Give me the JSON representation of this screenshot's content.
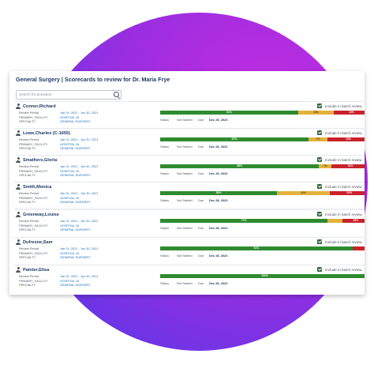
{
  "title": "General Surgery | Scorecards to review for Dr. Maria Frye",
  "search": {
    "placeholder": "Search for providers"
  },
  "labels": {
    "review_period": "Review Period",
    "primary_facility": "PRIMARY_FACILITY",
    "specialty": "SPECIALTY",
    "status": "Status",
    "due": "Due",
    "include": "Include in batch review"
  },
  "colors": {
    "green": "#2e8b2e",
    "yellow": "#e3b23c",
    "red": "#c9222b",
    "accent": "#1f3a63"
  },
  "providers": [
    {
      "name": "Conner,Richard",
      "period": "Jan 01, 2021 - Jun 30, 2021",
      "facility": "HOSPITAL 15",
      "specialty": "GENERAL SURGERY",
      "status": "Not Started",
      "due": "Dec 28, 2023",
      "segments": [
        {
          "color": "green",
          "pct": 66,
          "label": "61%"
        },
        {
          "color": "yellow",
          "pct": 17,
          "label": "13%"
        },
        {
          "color": "red",
          "pct": 17,
          "label": "13%"
        }
      ]
    },
    {
      "name": "Lowe,Charles (C-1655)",
      "period": "Jan 01, 2021 - Jun 30, 2021",
      "facility": "HOSPITAL 15",
      "specialty": "GENERAL SURGERY",
      "status": "Not Started",
      "due": "Dec 28, 2023",
      "segments": [
        {
          "color": "green",
          "pct": 71,
          "label": "67%"
        },
        {
          "color": "yellow",
          "pct": 9,
          "label": "7%"
        },
        {
          "color": "red",
          "pct": 20,
          "label": "13%"
        }
      ]
    },
    {
      "name": "Smathers,Gloria",
      "period": "Jan 01, 2021 - Jun 30, 2021",
      "facility": "HOSPITAL 15",
      "specialty": "GENERAL SURGERY",
      "status": "Not Started",
      "due": "Dec 28, 2023",
      "segments": [
        {
          "color": "green",
          "pct": 76,
          "label": "68%"
        },
        {
          "color": "yellow",
          "pct": 6,
          "label": "7%"
        },
        {
          "color": "red",
          "pct": 18,
          "label": "21%"
        }
      ]
    },
    {
      "name": "Smith,Monica",
      "period": "Jan 01, 2021 - Jun 30, 2021",
      "facility": "HOSPITAL 15",
      "specialty": "GENERAL SURGERY",
      "status": "Not Started",
      "due": "Dec 28, 2023",
      "segments": [
        {
          "color": "green",
          "pct": 56,
          "label": "55%"
        },
        {
          "color": "yellow",
          "pct": 25,
          "label": "22%"
        },
        {
          "color": "red",
          "pct": 19,
          "label": "22%"
        }
      ]
    },
    {
      "name": "Greenway,Louise",
      "period": "Jan 01, 2021 - Jun 30, 2021",
      "facility": "HOSPITAL 15",
      "specialty": "GENERAL SURGERY",
      "status": "Not Started",
      "due": "Dec 28, 2023",
      "segments": [
        {
          "color": "green",
          "pct": 80,
          "label": "77%"
        },
        {
          "color": "yellow",
          "pct": 7,
          "label": ""
        },
        {
          "color": "red",
          "pct": 13,
          "label": "16%"
        }
      ]
    },
    {
      "name": "Dufresne,Sam",
      "period": "Jan 01, 2021 - Jun 30, 2021",
      "facility": "HOSPITAL 15",
      "specialty": "GENERAL SURGERY",
      "status": "Not Started",
      "due": "Dec 28, 2023",
      "segments": [
        {
          "color": "green",
          "pct": 92,
          "label": "91%"
        },
        {
          "color": "red",
          "pct": 8,
          "label": ""
        }
      ]
    },
    {
      "name": "Painter,Elisa",
      "period": "Jan 01, 2021 - Jun 30, 2021",
      "facility": "HOSPITAL 15",
      "specialty": "GENERAL SURGERY",
      "status": "Not Started",
      "due": "Dec 28, 2023",
      "segments": [
        {
          "color": "green",
          "pct": 100,
          "label": "100%"
        }
      ]
    }
  ]
}
